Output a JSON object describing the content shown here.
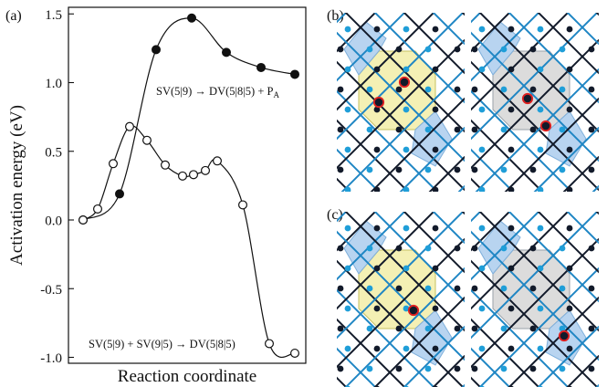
{
  "panel_labels": {
    "a": "(a)",
    "b": "(b)",
    "c": "(c)"
  },
  "chart_data": {
    "type": "line",
    "xlabel": "Reaction coordinate",
    "ylabel": "Activation energy (eV)",
    "ylim": [
      -1.05,
      1.55
    ],
    "yticks": [
      -1.0,
      -0.5,
      0.0,
      0.5,
      1.0,
      1.5
    ],
    "ytick_labels": [
      "-1.0",
      "-0.5",
      "0.0",
      "0.5",
      "1.0",
      "1.5"
    ],
    "grid": false,
    "series": [
      {
        "name": "SV(5|9) → DV(5|8|5) + PA",
        "marker": "filled",
        "x": [
          0,
          1,
          2,
          3,
          4,
          5,
          6,
          7
        ],
        "y": [
          0.0,
          0.19,
          1.24,
          1.47,
          1.22,
          1.11,
          1.06,
          1.06
        ]
      },
      {
        "name": "SV(5|9) + SV(9|5) → DV(5|8|5)",
        "marker": "open",
        "x": [
          0,
          1,
          2,
          3,
          4,
          5,
          6,
          7,
          8,
          9,
          10,
          11,
          12,
          13
        ],
        "y": [
          0.0,
          0.08,
          0.41,
          0.68,
          0.58,
          0.4,
          0.32,
          0.33,
          0.36,
          0.43,
          0.11,
          -0.9,
          -0.97,
          -0.97
        ]
      }
    ]
  },
  "annotations": {
    "upper": {
      "main": "SV(5|9) → DV(5|8|5) + P",
      "sub": "A"
    },
    "lower": "SV(5|9) + SV(9|5) → DV(5|8|5)"
  },
  "colors": {
    "blue_pentagon": "#b8d4f0",
    "yellow_octagon": "#f4f0b4",
    "gray_octagon": "#dcdcdc",
    "bond_blue": "#1f86c4",
    "bond_black": "#121a2a",
    "atom_blue": "#1f9ed8",
    "atom_black": "#121a2a",
    "highlight_red": "#e02020"
  }
}
